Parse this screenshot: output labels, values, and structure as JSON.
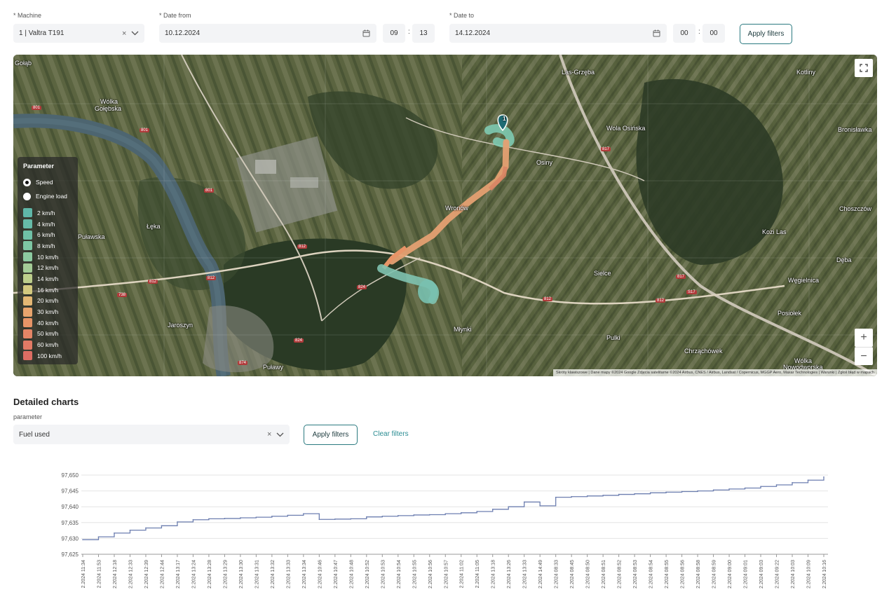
{
  "filters": {
    "machine_label": "* Machine",
    "machine_value": "1 | Valtra T191",
    "date_from_label": "* Date from",
    "date_from_value": "10.12.2024",
    "time_from_h": "09",
    "time_from_m": "13",
    "date_to_label": "* Date to",
    "date_to_value": "14.12.2024",
    "time_to_h": "00",
    "time_to_m": "00",
    "apply_label": "Apply filters"
  },
  "map": {
    "labels": [
      "Gołąb",
      "Wólka",
      "Gołębska",
      "Las-Grzęba",
      "Kotliny",
      "Wola Osińska",
      "Bronisławka",
      "Osiny",
      "Choszczów",
      "Wronów",
      "Łęka",
      "Kozi Las",
      "Puławska",
      "Sielce",
      "Dęba",
      "Węgielnica",
      "Jaroszyn",
      "Młynki",
      "Posiołek",
      "Pulki",
      "Chrząchówek",
      "Wólka",
      "Nowodworska",
      "Puławy"
    ],
    "road_labels": [
      "801",
      "801",
      "801",
      "812",
      "812",
      "812",
      "824",
      "824",
      "874",
      "817",
      "817",
      "812",
      "812",
      "738",
      "S17"
    ],
    "marker_label": "1",
    "attribution": "Skróty klawiszowe | Dane mapy ©2024 Google Zdjęcia satelitarne ©2024 Airbus, CNES / Airbus, Landsat / Copernicus, MGGP Aero, Maxar Technologies | Warunki | Zgłoś błąd w mapach",
    "zoom_in": "+",
    "zoom_out": "−",
    "legend": {
      "title": "Parameter",
      "options": [
        {
          "label": "Speed",
          "selected": true
        },
        {
          "label": "Engine load",
          "selected": false
        }
      ],
      "items": [
        {
          "label": "2 km/h",
          "color": "#5fb7a8"
        },
        {
          "label": "4 km/h",
          "color": "#66bba8"
        },
        {
          "label": "6 km/h",
          "color": "#6fc0a6"
        },
        {
          "label": "8 km/h",
          "color": "#7dc6a3"
        },
        {
          "label": "10 km/h",
          "color": "#8ccaa0"
        },
        {
          "label": "12 km/h",
          "color": "#a4cc97"
        },
        {
          "label": "14 km/h",
          "color": "#bdcf8c"
        },
        {
          "label": "16 km/h",
          "color": "#d3c97f"
        },
        {
          "label": "20 km/h",
          "color": "#e3b774"
        },
        {
          "label": "30 km/h",
          "color": "#e8a46d"
        },
        {
          "label": "40 km/h",
          "color": "#e79467"
        },
        {
          "label": "50 km/h",
          "color": "#e58566"
        },
        {
          "label": "60 km/h",
          "color": "#e27a65"
        },
        {
          "label": "100 km/h",
          "color": "#dd6d63"
        }
      ]
    }
  },
  "detail": {
    "title": "Detailed charts",
    "param_label": "parameter",
    "param_value": "Fuel used",
    "apply_label": "Apply filters",
    "clear_label": "Clear filters"
  },
  "chart_data": {
    "type": "line",
    "ylim": [
      97625,
      97650
    ],
    "y_ticks": [
      "97,625",
      "97,630",
      "97,635",
      "97,640",
      "97,645",
      "97,650"
    ],
    "x": [
      "2.2024 11:34",
      "2.2024 11:53",
      "2.2024 12:18",
      "2.2024 12:33",
      "2.2024 12:39",
      "2.2024 12:44",
      "2.2024 13:17",
      "2.2024 13:24",
      "2.2024 13:28",
      "2.2024 13:29",
      "2.2024 13:30",
      "2.2024 13:31",
      "2.2024 13:32",
      "2.2024 13:33",
      "2.2024 13:34",
      "2.2024 10:46",
      "2.2024 10:47",
      "2.2024 10:48",
      "2.2024 10:52",
      "2.2024 10:53",
      "2.2024 10:54",
      "2.2024 10:55",
      "2.2024 10:56",
      "2.2024 10:57",
      "2.2024 11:02",
      "2.2024 11:05",
      "2.2024 13:18",
      "2.2024 13:26",
      "2.2024 13:33",
      "2.2024 14:49",
      "2.2024 08:33",
      "2.2024 08:45",
      "2.2024 08:50",
      "2.2024 08:51",
      "2.2024 08:52",
      "2.2024 08:53",
      "2.2024 08:54",
      "2.2024 08:55",
      "2.2024 08:56",
      "2.2024 08:58",
      "2.2024 08:59",
      "2.2024 09:00",
      "2.2024 09:01",
      "2.2024 09:03",
      "2.2024 09:22",
      "2.2024 10:03",
      "2.2024 10:09",
      "2.2024 10:16"
    ],
    "values": [
      97629.6,
      97630.5,
      97631.7,
      97632.6,
      97633.3,
      97634.0,
      97635.2,
      97635.9,
      97636.2,
      97636.3,
      97636.5,
      97636.7,
      97637.0,
      97637.3,
      97637.8,
      97636.0,
      97636.1,
      97636.2,
      97636.8,
      97637.0,
      97637.2,
      97637.4,
      97637.5,
      97637.8,
      97638.1,
      97638.5,
      97639.2,
      97640.0,
      97641.5,
      97640.3,
      97643.0,
      97643.2,
      97643.4,
      97643.6,
      97643.9,
      97644.1,
      97644.4,
      97644.6,
      97644.8,
      97645.0,
      97645.3,
      97645.6,
      97645.9,
      97646.4,
      97646.9,
      97647.6,
      97648.4,
      97649.4
    ]
  }
}
